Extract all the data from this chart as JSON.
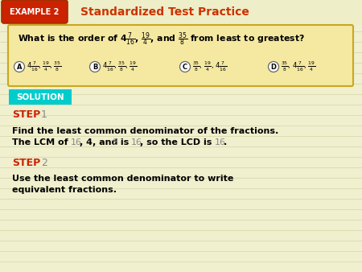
{
  "bg_color": "#f0efce",
  "header_bg": "#f0efce",
  "example_box_color": "#cc2200",
  "example_box_text": "EXAMPLE 2",
  "header_title": "Standardized Test Practice",
  "header_title_color": "#cc3300",
  "question_box_bg": "#f5e8a0",
  "question_box_border": "#c8a820",
  "solution_box_bg": "#00cccc",
  "solution_text": "SOLUTION",
  "step_color": "#cc2200",
  "step1_num_color": "#888888",
  "step2_num_color": "#888888",
  "lcm_numbers_color": "#888888",
  "body_bold_color": "#000000",
  "line_color": "#d4d4aa"
}
